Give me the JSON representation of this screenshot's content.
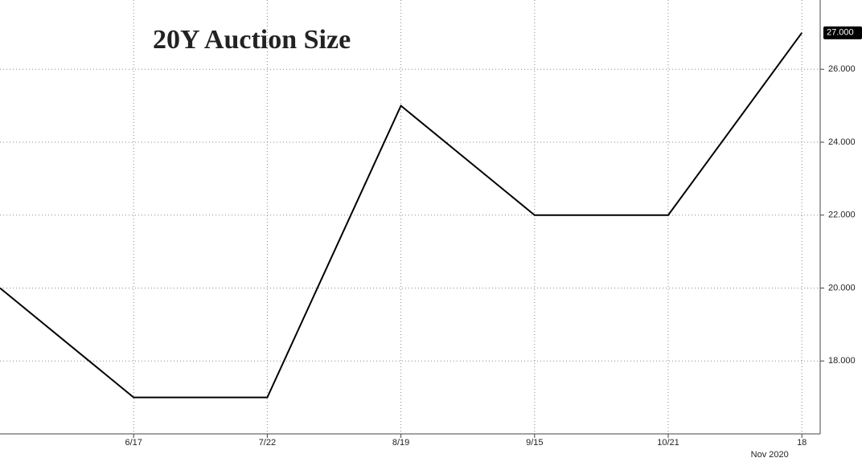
{
  "chart_data": {
    "type": "line",
    "title": "20Y Auction Size",
    "categories": [
      null,
      "6/17",
      "7/22",
      "8/19",
      "9/15",
      "10/21",
      "18"
    ],
    "x_annotation": "Nov 2020",
    "series": [
      {
        "name": null,
        "color": "#000000",
        "values": [
          20,
          17,
          17,
          25,
          22,
          22,
          27
        ],
        "value_labels": [
          null,
          null,
          null,
          null,
          null,
          null,
          "27.000"
        ]
      }
    ],
    "ylim": [
      16,
      27.9
    ],
    "yticks": [
      {
        "value": 18,
        "label": "18.000"
      },
      {
        "value": 20,
        "label": "20.000"
      },
      {
        "value": 22,
        "label": "22.000"
      },
      {
        "value": 24,
        "label": "24.000"
      },
      {
        "value": 26,
        "label": "26.000"
      }
    ],
    "grid": true
  }
}
